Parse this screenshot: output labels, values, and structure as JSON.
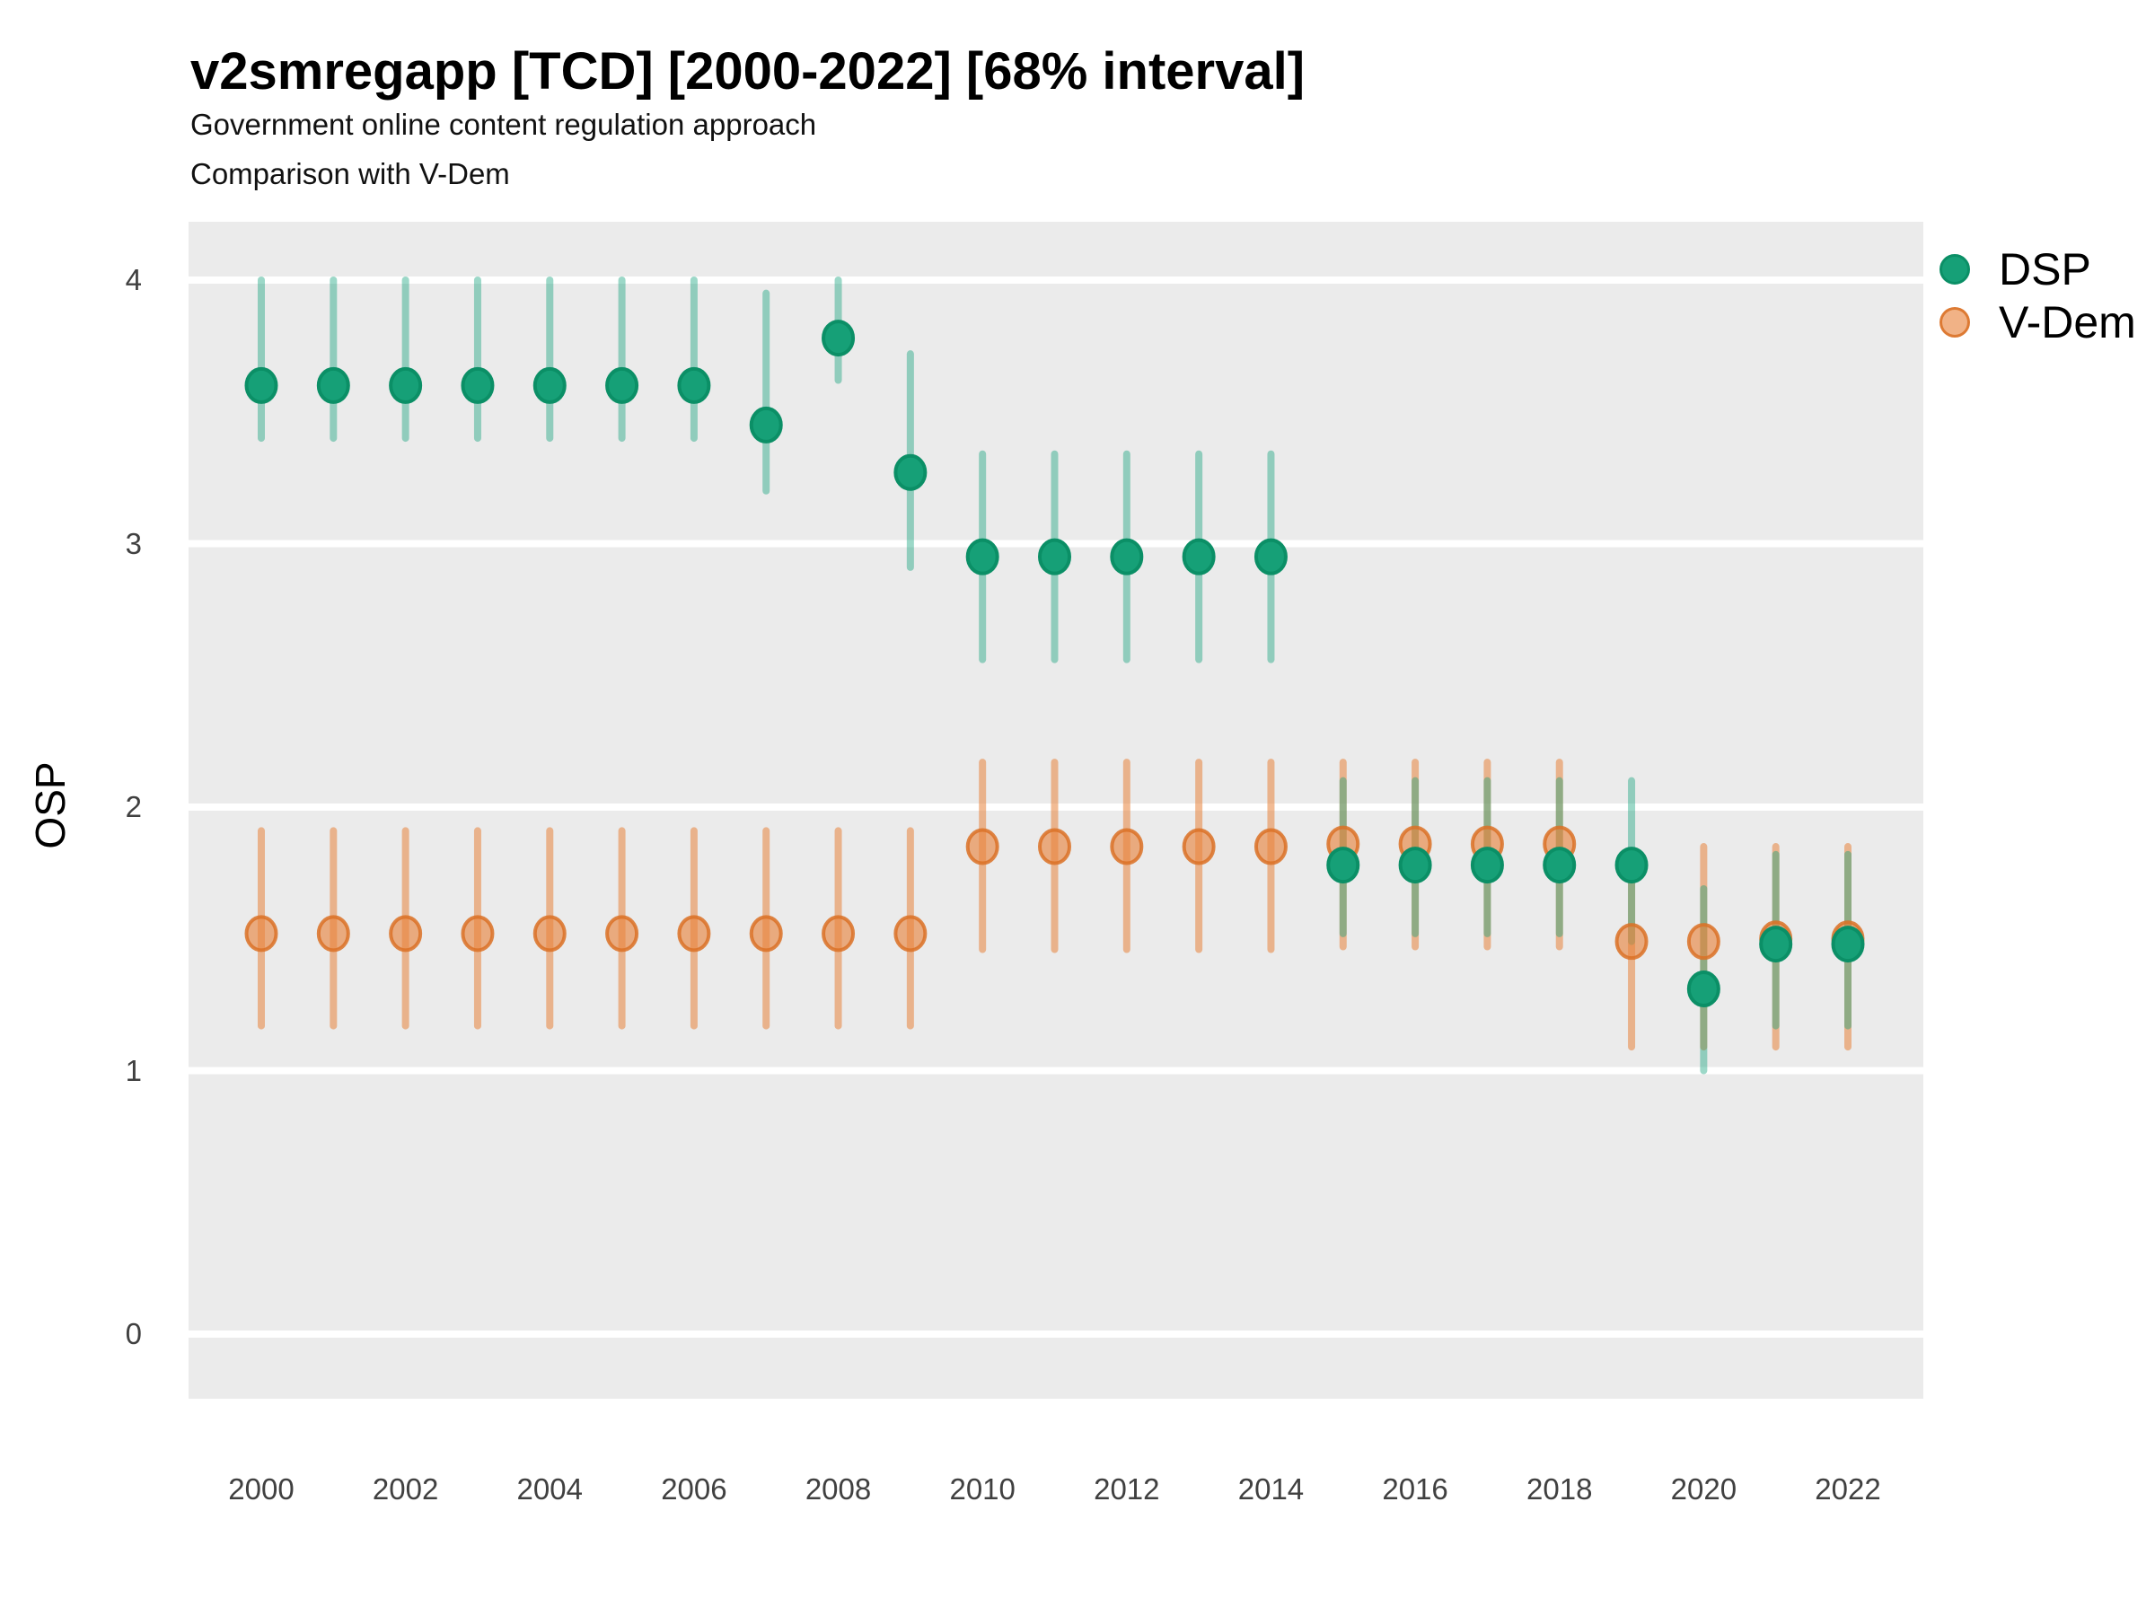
{
  "header": {
    "title": "v2smregapp [TCD] [2000-2022] [68% interval]",
    "subtitle_line1": "Government online content regulation approach",
    "subtitle_line2": "Comparison with V-Dem"
  },
  "y_axis": {
    "label": "OSP",
    "ticks": [
      4,
      3,
      2,
      1,
      0
    ]
  },
  "x_axis": {
    "ticks": [
      2000,
      2002,
      2004,
      2006,
      2008,
      2010,
      2012,
      2014,
      2016,
      2018,
      2020,
      2022
    ]
  },
  "legend": {
    "position": "right",
    "items": [
      {
        "label": "DSP"
      },
      {
        "label": "V-Dem"
      }
    ]
  },
  "colors": {
    "panel_bg": "#ebebeb",
    "grid": "#ffffff",
    "dsp_solid": "#12a17b",
    "dsp_point_fill": "#16a077",
    "dsp_point_stroke": "#0b8f66",
    "dsp_line": "rgba(18,161,123,0.42)",
    "vdem_solid": "#e8833c",
    "vdem_point_fill": "rgba(232,131,60,0.62)",
    "vdem_point_stroke": "rgba(219,113,38,0.85)",
    "vdem_line": "rgba(232,131,60,0.55)",
    "tick_text": "#404040",
    "title_text": "#000000"
  },
  "chart_data": {
    "type": "scatter",
    "subtype": "pointrange",
    "interval_label": "68% interval",
    "title": "v2smregapp [TCD] [2000-2022] [68% interval]",
    "xlabel": "",
    "ylabel": "OSP",
    "ylim": [
      -0.25,
      4.22
    ],
    "yticks": [
      0,
      1,
      2,
      3,
      4
    ],
    "xticks": [
      2000,
      2002,
      2004,
      2006,
      2008,
      2010,
      2012,
      2014,
      2016,
      2018,
      2020,
      2022
    ],
    "grid": "horizontal-white-on-grey",
    "legend_position": "right",
    "x": [
      2000,
      2001,
      2002,
      2003,
      2004,
      2005,
      2006,
      2007,
      2008,
      2009,
      2010,
      2011,
      2012,
      2013,
      2014,
      2015,
      2016,
      2017,
      2018,
      2019,
      2020,
      2021,
      2022
    ],
    "series": [
      {
        "name": "DSP",
        "est": [
          3.6,
          3.6,
          3.6,
          3.6,
          3.6,
          3.6,
          3.6,
          3.45,
          3.78,
          3.27,
          2.95,
          2.95,
          2.95,
          2.95,
          2.95,
          1.78,
          1.78,
          1.78,
          1.78,
          1.78,
          1.31,
          1.48,
          1.48
        ],
        "lo": [
          3.4,
          3.4,
          3.4,
          3.4,
          3.4,
          3.4,
          3.4,
          3.2,
          3.62,
          2.91,
          2.56,
          2.56,
          2.56,
          2.56,
          2.56,
          1.52,
          1.52,
          1.52,
          1.52,
          1.49,
          1.0,
          1.17,
          1.17
        ],
        "hi": [
          4.0,
          4.0,
          4.0,
          4.0,
          4.0,
          4.0,
          4.0,
          3.95,
          4.0,
          3.72,
          3.34,
          3.34,
          3.34,
          3.34,
          3.34,
          2.1,
          2.1,
          2.1,
          2.1,
          2.1,
          1.69,
          1.82,
          1.82
        ]
      },
      {
        "name": "V-Dem",
        "est": [
          1.52,
          1.52,
          1.52,
          1.52,
          1.52,
          1.52,
          1.52,
          1.52,
          1.52,
          1.52,
          1.85,
          1.85,
          1.85,
          1.85,
          1.85,
          1.86,
          1.86,
          1.86,
          1.86,
          1.49,
          1.49,
          1.5,
          1.5
        ],
        "lo": [
          1.17,
          1.17,
          1.17,
          1.17,
          1.17,
          1.17,
          1.17,
          1.17,
          1.17,
          1.17,
          1.46,
          1.46,
          1.46,
          1.46,
          1.46,
          1.47,
          1.47,
          1.47,
          1.47,
          1.09,
          1.09,
          1.09,
          1.09
        ],
        "hi": [
          1.91,
          1.91,
          1.91,
          1.91,
          1.91,
          1.91,
          1.91,
          1.91,
          1.91,
          1.91,
          2.17,
          2.17,
          2.17,
          2.17,
          2.17,
          2.17,
          2.17,
          2.17,
          2.17,
          1.78,
          1.85,
          1.85,
          1.85
        ]
      }
    ]
  }
}
